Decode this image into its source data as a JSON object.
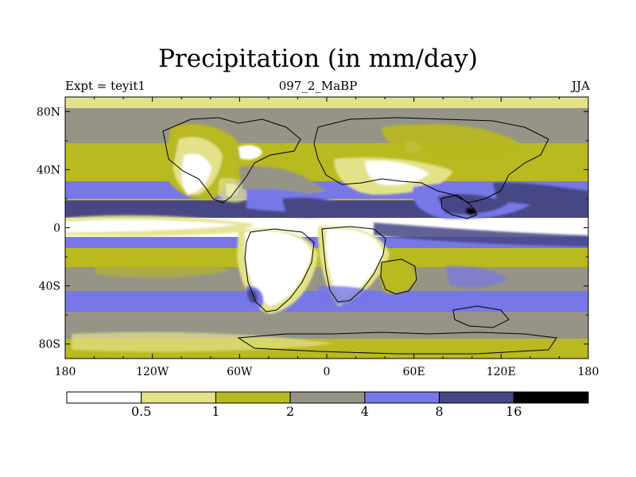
{
  "title": "Precipitation (in mm/day)",
  "subtitle_left": "Expt = teyit1",
  "subtitle_center": "097_2_MaBP",
  "subtitle_right": "JJA",
  "colors": {
    "white": "#ffffff",
    "pale_yellow": "#e4e289",
    "olive_yellow": "#b9b920",
    "gray": "#969487",
    "periwinkle": "#7777e7",
    "dark_blue": "#474786",
    "black": "#000000"
  },
  "chart_data": {
    "type": "heatmap",
    "projection": "cylindrical-equidistant",
    "title": "Precipitation (in mm/day)",
    "lon_range": [
      -180,
      180
    ],
    "lat_range": [
      -90,
      90
    ],
    "x_ticks": [
      {
        "value": -180,
        "label": "180"
      },
      {
        "value": -120,
        "label": "120W"
      },
      {
        "value": -60,
        "label": "60W"
      },
      {
        "value": 0,
        "label": "0"
      },
      {
        "value": 60,
        "label": "60E"
      },
      {
        "value": 120,
        "label": "120E"
      },
      {
        "value": 180,
        "label": "180"
      }
    ],
    "y_ticks": [
      {
        "value": 80,
        "label": "80N"
      },
      {
        "value": 40,
        "label": "40N"
      },
      {
        "value": 0,
        "label": "0"
      },
      {
        "value": -40,
        "label": "40S"
      },
      {
        "value": -80,
        "label": "80S"
      }
    ],
    "levels": [
      0.5,
      1,
      2,
      4,
      8,
      16
    ],
    "level_labels": [
      "0.5",
      "1",
      "2",
      "4",
      "8",
      "16"
    ],
    "bins": [
      {
        "range": "< 0.5",
        "color": "#ffffff"
      },
      {
        "range": "0.5 - 1",
        "color": "#e4e289"
      },
      {
        "range": "1 - 2",
        "color": "#b9b920"
      },
      {
        "range": "2 - 4",
        "color": "#969487"
      },
      {
        "range": "4 - 8",
        "color": "#7777e7"
      },
      {
        "range": "8 - 16",
        "color": "#474786"
      },
      {
        "range": "> 16",
        "color": "#000000"
      }
    ],
    "legend_position": "bottom"
  }
}
